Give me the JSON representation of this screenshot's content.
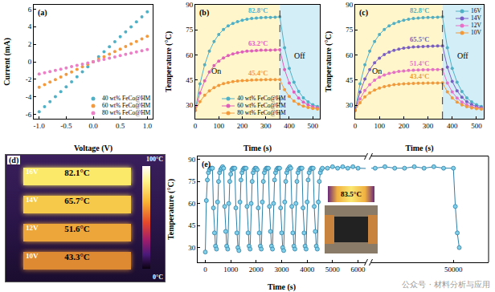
{
  "chart_data": [
    {
      "panel": "(a)",
      "type": "scatter",
      "marker": "circle",
      "grid": false,
      "legend": "lower right",
      "xlabel": "Voltage (V)",
      "ylabel": "Current (mA)",
      "xlim": [
        -1.1,
        1.1
      ],
      "xticks": [
        {
          "value": -1,
          "label": "-1.0"
        },
        -0.5,
        {
          "value": 0,
          "label": "0.0"
        },
        0.5,
        {
          "value": 1,
          "label": "1.0"
        }
      ],
      "ylim": [
        -6.5,
        6.5
      ],
      "yticks": [
        -6,
        -4,
        -2,
        0,
        2,
        4,
        6
      ],
      "x": [
        -1,
        -0.9,
        -0.8,
        -0.7,
        -0.6,
        -0.5,
        -0.4,
        -0.3,
        -0.2,
        -0.1,
        0,
        0.1,
        0.2,
        0.3,
        0.4,
        0.5,
        0.6,
        0.7,
        0.8,
        0.9,
        1
      ],
      "series": [
        {
          "name": "40 wt% FeCo@HM",
          "color": "#4fb0c6",
          "values": [
            -5.7,
            -5.13,
            -4.56,
            -3.99,
            -3.42,
            -2.85,
            -2.28,
            -1.71,
            -1.14,
            -0.57,
            0,
            0.57,
            1.14,
            1.71,
            2.28,
            2.85,
            3.42,
            3.99,
            4.56,
            5.13,
            5.7
          ]
        },
        {
          "name": "60 wt% FeCo@HM",
          "color": "#f39a3f",
          "values": [
            -2.9,
            -2.61,
            -2.32,
            -2.03,
            -1.74,
            -1.45,
            -1.16,
            -0.87,
            -0.58,
            -0.29,
            0,
            0.29,
            0.58,
            0.87,
            1.16,
            1.45,
            1.74,
            2.03,
            2.32,
            2.61,
            2.9
          ]
        },
        {
          "name": "80 wt% FeCo@HM",
          "color": "#ec7fc6",
          "values": [
            -1.4,
            -1.26,
            -1.12,
            -0.98,
            -0.84,
            -0.7,
            -0.56,
            -0.42,
            -0.28,
            -0.14,
            0,
            0.14,
            0.28,
            0.42,
            0.56,
            0.7,
            0.84,
            0.98,
            1.12,
            1.26,
            1.4
          ]
        }
      ]
    },
    {
      "panel": "(b)",
      "type": "line",
      "marker": "circle",
      "grid": false,
      "legend": "lower center",
      "xlabel": "Time (s)",
      "ylabel": "Temperature (°C)",
      "xlim": [
        0,
        530
      ],
      "xticks": [
        0,
        100,
        200,
        300,
        400,
        500
      ],
      "ylim": [
        22,
        90
      ],
      "yticks": [
        30,
        45,
        60,
        75,
        90
      ],
      "switch_off": 360,
      "annotations": [
        "On",
        "Off"
      ],
      "x": [
        0,
        20,
        40,
        60,
        80,
        100,
        120,
        140,
        160,
        180,
        200,
        220,
        240,
        260,
        280,
        300,
        320,
        340,
        360,
        380,
        400,
        420,
        440,
        460,
        480,
        500,
        520
      ],
      "series": [
        {
          "name": "40 wt% FeCo@HM",
          "color": "#4fb0c6",
          "annotation": "82.8°C",
          "values": [
            27,
            42.8,
            54.2,
            62.3,
            68.1,
            72.3,
            75.3,
            77.4,
            78.9,
            80.0,
            80.8,
            81.4,
            81.8,
            82.1,
            82.3,
            82.4,
            82.5,
            82.6,
            82.8,
            64.4,
            52.1,
            43.8,
            38.3,
            34.5,
            32.1,
            30.4,
            29.3
          ]
        },
        {
          "name": "60 wt% FeCo@HM",
          "color": "#e05fb8",
          "annotation": "63.2°C",
          "values": [
            27,
            37.3,
            44.6,
            49.9,
            53.7,
            56.4,
            58.3,
            59.7,
            60.7,
            61.4,
            61.9,
            62.3,
            62.5,
            62.7,
            62.9,
            63.0,
            63.0,
            63.1,
            63.2,
            51.3,
            43.3,
            37.9,
            34.3,
            31.9,
            30.3,
            29.2,
            28.5
          ]
        },
        {
          "name": "80 wt% FeCo@HM",
          "color": "#f29a3a",
          "annotation": "45.4°C",
          "values": [
            27,
            32.2,
            36.0,
            38.6,
            40.5,
            41.9,
            42.9,
            43.6,
            44.1,
            44.5,
            44.7,
            44.9,
            45.1,
            45.2,
            45.2,
            45.3,
            45.3,
            45.3,
            45.4,
            39.3,
            35.3,
            32.5,
            30.7,
            29.5,
            28.7,
            28.1,
            27.8
          ]
        }
      ]
    },
    {
      "panel": "(c)",
      "type": "line",
      "marker": "circle",
      "grid": false,
      "legend": "upper right",
      "xlabel": "Time (s)",
      "ylabel": "Temperature (°C)",
      "xlim": [
        0,
        530
      ],
      "xticks": [
        0,
        100,
        200,
        300,
        400,
        500
      ],
      "ylim": [
        22,
        90
      ],
      "yticks": [
        30,
        45,
        60,
        75,
        90
      ],
      "switch_off": 360,
      "annotations": [
        "On",
        "Off"
      ],
      "x": [
        0,
        20,
        40,
        60,
        80,
        100,
        120,
        140,
        160,
        180,
        200,
        220,
        240,
        260,
        280,
        300,
        320,
        340,
        360,
        380,
        400,
        420,
        440,
        460,
        480,
        500,
        520
      ],
      "series": [
        {
          "name": "16V",
          "color": "#4fb0c6",
          "annotation": "82.8°C",
          "values": [
            27,
            42.8,
            54.2,
            62.3,
            68.1,
            72.3,
            75.3,
            77.4,
            78.9,
            80.0,
            80.8,
            81.4,
            81.8,
            82.1,
            82.3,
            82.4,
            82.5,
            82.6,
            82.8,
            64.4,
            52.1,
            43.8,
            38.3,
            34.5,
            32.1,
            30.4,
            29.3
          ]
        },
        {
          "name": "14V",
          "color": "#7a5fc8",
          "annotation": "65.5°C",
          "values": [
            27,
            37.9,
            45.7,
            51.3,
            55.4,
            58.2,
            60.3,
            61.8,
            62.8,
            63.6,
            64.1,
            64.5,
            64.8,
            65.0,
            65.1,
            65.2,
            65.3,
            65.4,
            65.5,
            52.8,
            44.3,
            38.6,
            34.8,
            32.2,
            30.5,
            29.3,
            28.6
          ]
        },
        {
          "name": "12V",
          "color": "#e870c8",
          "annotation": "51.4°C",
          "values": [
            27,
            33.9,
            38.9,
            42.4,
            45.0,
            46.8,
            48.1,
            49.0,
            49.7,
            50.2,
            50.5,
            50.8,
            51.0,
            51.1,
            51.2,
            51.2,
            51.3,
            51.3,
            51.4,
            43.3,
            38.0,
            34.3,
            31.9,
            30.3,
            29.2,
            28.5,
            28.0
          ]
        },
        {
          "name": "10V",
          "color": "#f29a3a",
          "annotation": "43.4°C",
          "values": [
            27,
            31.6,
            35.0,
            37.4,
            39.1,
            40.3,
            41.2,
            41.8,
            42.3,
            42.6,
            42.8,
            43.0,
            43.1,
            43.2,
            43.2,
            43.3,
            43.3,
            43.3,
            43.4,
            38.0,
            34.4,
            31.9,
            30.3,
            29.2,
            28.5,
            28.0,
            27.7
          ]
        }
      ]
    },
    {
      "panel": "(e)",
      "type": "line",
      "marker": "circle",
      "grid": false,
      "xlabel": "Time (s)",
      "ylabel": "Temperature (°C)",
      "ylim": [
        20,
        92
      ],
      "yticks": [
        30,
        45,
        60,
        75,
        90
      ],
      "segments": [
        {
          "xlim": [
            -300,
            6300
          ],
          "xticks": [
            0,
            1000,
            2000,
            3000,
            4000,
            5000,
            6000
          ]
        },
        {
          "xlim": [
            45800,
            51800
          ],
          "xticks": [
            50000
          ]
        }
      ],
      "inset": {
        "label": "83.5°C"
      },
      "x": [
        0,
        40,
        80,
        120,
        160,
        200,
        240,
        280,
        320,
        360,
        400,
        440,
        480,
        520,
        560,
        600,
        640,
        680,
        720,
        760,
        800,
        840,
        880,
        920,
        960,
        1000,
        1040,
        1080,
        1120,
        1160,
        1200,
        1240,
        1280,
        1320,
        1360,
        1400,
        1440,
        1480,
        1520,
        1560,
        1600,
        1640,
        1680,
        1720,
        1760,
        1800,
        1840,
        1880,
        1920,
        1960,
        2000,
        2040,
        2080,
        2120,
        2160,
        2200,
        2240,
        2280,
        2320,
        2360,
        2400,
        2440,
        2480,
        2520,
        2560,
        2600,
        2640,
        2680,
        2720,
        2760,
        2800,
        2840,
        2880,
        2920,
        2960,
        3000,
        3040,
        3080,
        3120,
        3160,
        3200,
        3240,
        3280,
        3320,
        3360,
        3400,
        3440,
        3480,
        3520,
        3560,
        3600,
        3640,
        3680,
        3720,
        3760,
        3800,
        3840,
        3880,
        3920,
        3960,
        4000,
        4040,
        4080,
        4120,
        4160,
        4200,
        4240,
        4280,
        4320,
        4360,
        4400,
        4440,
        4480,
        4520,
        4560,
        4600,
        4800,
        5000,
        5200,
        5400,
        5600,
        5800,
        6000,
        46000,
        46500,
        47000,
        47500,
        48000,
        48500,
        49000,
        49500,
        50000,
        50100,
        50200,
        50300
      ],
      "series": [
        {
          "color": "#7fd0e8",
          "values": [
            27,
            62,
            76,
            81,
            83,
            84,
            84,
            84,
            57,
            40,
            31,
            29,
            61,
            75,
            81,
            83,
            84,
            85,
            84,
            58,
            41,
            31,
            29,
            60,
            75,
            80,
            83,
            84,
            84,
            84,
            57,
            40,
            30,
            28,
            61,
            76,
            81,
            83,
            84,
            84,
            84,
            58,
            40,
            31,
            29,
            60,
            75,
            81,
            83,
            84,
            84,
            83,
            57,
            40,
            31,
            29,
            61,
            75,
            81,
            83,
            84,
            84,
            84,
            58,
            41,
            31,
            29,
            60,
            76,
            81,
            83,
            84,
            84,
            84,
            57,
            40,
            30,
            28,
            61,
            75,
            81,
            83,
            84,
            85,
            84,
            58,
            40,
            31,
            29,
            60,
            75,
            81,
            83,
            84,
            84,
            84,
            57,
            40,
            31,
            29,
            61,
            76,
            81,
            83,
            84,
            84,
            84,
            58,
            41,
            31,
            29,
            61,
            75,
            81,
            83,
            84,
            84,
            85,
            84,
            85,
            84,
            85,
            84,
            84,
            85,
            84,
            84,
            85,
            84,
            85,
            84,
            84,
            58,
            40,
            30
          ]
        }
      ]
    }
  ],
  "thermal_image": {
    "panel": "(d)",
    "scale_max": "100°C",
    "scale_min": "0°C",
    "strips": [
      {
        "voltage": "16V",
        "temperature": "82.1°C"
      },
      {
        "voltage": "14V",
        "temperature": "65.7°C"
      },
      {
        "voltage": "12V",
        "temperature": "51.6°C"
      },
      {
        "voltage": "10V",
        "temperature": "43.3°C"
      }
    ]
  },
  "watermark": "公众号 · 材料分析与应用"
}
